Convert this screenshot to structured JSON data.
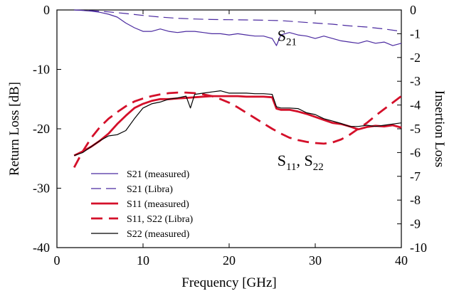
{
  "chart_data": {
    "type": "line",
    "xlabel": "Frequency [GHz]",
    "ylabel": "Return Loss [dB]",
    "y2label": "Insertion Loss",
    "xlim": [
      0,
      40
    ],
    "ylim": [
      -40,
      0
    ],
    "y2lim": [
      -10,
      0
    ],
    "xticks": [
      "0",
      "10",
      "20",
      "30",
      "40"
    ],
    "yticks": [
      "0",
      "-10",
      "-20",
      "-30",
      "-40"
    ],
    "y2ticks": [
      "0",
      "-1",
      "-2",
      "-3",
      "-4",
      "-5",
      "-6",
      "-7",
      "-8",
      "-9",
      "-10"
    ],
    "grid": false,
    "legend_position": "bottom-left",
    "annotations": [
      {
        "main": "S",
        "sub": "21",
        "x": 25.6,
        "y": -5.2
      },
      {
        "main": "S",
        "sub": "11",
        "rest": ", S",
        "sub2": "22",
        "x": 25.6,
        "y": -26.2
      }
    ],
    "series": [
      {
        "name": "S21 (measured)",
        "color": "#4b2aa0",
        "dash": "solid",
        "axis": "right",
        "x": [
          2,
          3,
          4,
          5,
          6,
          7,
          8,
          9,
          10,
          11,
          12,
          13,
          14,
          15,
          16,
          17,
          18,
          19,
          20,
          21,
          22,
          23,
          24,
          25,
          25.5,
          26,
          27,
          28,
          29,
          30,
          31,
          32,
          33,
          34,
          35,
          36,
          37,
          38,
          39,
          40
        ],
        "values": [
          0,
          -0.02,
          -0.05,
          -0.1,
          -0.18,
          -0.3,
          -0.55,
          -0.75,
          -0.9,
          -0.9,
          -0.8,
          -0.9,
          -0.95,
          -0.9,
          -0.9,
          -0.95,
          -1.0,
          -1.0,
          -1.05,
          -1.0,
          -1.05,
          -1.1,
          -1.1,
          -1.2,
          -1.5,
          -1.05,
          -0.95,
          -1.05,
          -1.1,
          -1.2,
          -1.1,
          -1.2,
          -1.3,
          -1.35,
          -1.4,
          -1.3,
          -1.4,
          -1.35,
          -1.5,
          -1.4
        ]
      },
      {
        "name": "S21 (Libra)",
        "color": "#4b2aa0",
        "dash": "long",
        "axis": "right",
        "x": [
          2,
          4,
          6,
          8,
          10,
          12,
          14,
          16,
          18,
          20,
          22,
          24,
          26,
          28,
          30,
          32,
          34,
          36,
          38,
          40
        ],
        "values": [
          0,
          -0.03,
          -0.08,
          -0.15,
          -0.23,
          -0.3,
          -0.35,
          -0.38,
          -0.4,
          -0.41,
          -0.42,
          -0.43,
          -0.45,
          -0.5,
          -0.55,
          -0.6,
          -0.67,
          -0.72,
          -0.8,
          -0.9
        ]
      },
      {
        "name": "S11 (measured)",
        "color": "#d4102a",
        "dash": "solid",
        "thick": true,
        "axis": "left",
        "x": [
          2,
          3,
          4,
          5,
          6,
          7,
          8,
          9,
          10,
          11,
          12,
          13,
          14,
          15,
          16,
          17,
          18,
          19,
          20,
          21,
          22,
          23,
          24,
          25,
          25.5,
          26,
          27,
          28,
          29,
          30,
          31,
          32,
          33,
          34,
          35,
          36,
          37,
          38,
          39,
          40
        ],
        "values": [
          -24.5,
          -23.8,
          -23.0,
          -22.0,
          -20.8,
          -19.2,
          -17.8,
          -16.5,
          -15.8,
          -15.3,
          -15.0,
          -15.0,
          -14.9,
          -14.8,
          -14.7,
          -14.6,
          -14.5,
          -14.5,
          -14.5,
          -14.5,
          -14.6,
          -14.6,
          -14.6,
          -14.7,
          -16.6,
          -16.8,
          -16.8,
          -17.1,
          -17.5,
          -18.0,
          -18.5,
          -19.0,
          -19.2,
          -19.6,
          -20.1,
          -19.7,
          -19.5,
          -19.6,
          -19.4,
          -19.8
        ]
      },
      {
        "name": "S11, S22 (Libra)",
        "color": "#d4102a",
        "dash": "long",
        "thick": true,
        "axis": "left",
        "x": [
          2,
          3,
          4,
          5,
          6,
          7,
          8,
          9,
          10,
          11,
          12,
          13,
          14,
          15,
          16,
          17,
          18,
          19,
          20,
          21,
          22,
          23,
          24,
          25,
          26,
          27,
          28,
          29,
          30,
          31,
          32,
          33,
          34,
          35,
          36,
          37,
          38,
          39,
          40
        ],
        "values": [
          -26.5,
          -23.8,
          -21.5,
          -19.7,
          -18.3,
          -17.2,
          -16.2,
          -15.4,
          -14.9,
          -14.5,
          -14.2,
          -14.0,
          -13.9,
          -13.9,
          -14.0,
          -14.2,
          -14.5,
          -15.0,
          -15.6,
          -16.4,
          -17.3,
          -18.2,
          -19.1,
          -20.0,
          -20.8,
          -21.5,
          -21.9,
          -22.2,
          -22.4,
          -22.5,
          -22.3,
          -21.8,
          -21.0,
          -20.0,
          -19.0,
          -17.8,
          -16.7,
          -15.6,
          -14.5
        ]
      },
      {
        "name": "S22 (measured)",
        "color": "#000000",
        "dash": "solid",
        "axis": "left",
        "x": [
          2,
          3,
          4,
          5,
          6,
          7,
          8,
          9,
          10,
          11,
          12,
          13,
          14,
          15,
          15.5,
          16,
          17,
          18,
          19,
          20,
          21,
          22,
          23,
          24,
          25,
          25.5,
          26,
          27,
          28,
          29,
          30,
          31,
          32,
          33,
          34,
          35,
          36,
          37,
          38,
          39,
          40
        ],
        "values": [
          -24.5,
          -24.0,
          -23.0,
          -22.0,
          -21.2,
          -21.0,
          -20.3,
          -18.3,
          -16.5,
          -15.8,
          -15.5,
          -15.0,
          -14.8,
          -14.5,
          -16.5,
          -14.2,
          -14.0,
          -13.8,
          -13.6,
          -14.0,
          -14.0,
          -14.0,
          -14.1,
          -14.1,
          -14.2,
          -16.3,
          -16.5,
          -16.5,
          -16.6,
          -17.3,
          -17.6,
          -18.3,
          -18.7,
          -19.1,
          -19.6,
          -19.6,
          -19.4,
          -19.6,
          -19.4,
          -19.2,
          -19.0
        ]
      }
    ]
  }
}
